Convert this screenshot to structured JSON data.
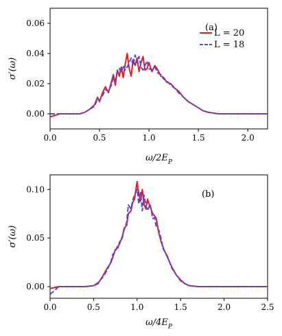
{
  "chart_data": [
    {
      "type": "line",
      "panel_label": "(a)",
      "xlabel": "ω/2E_P",
      "ylabel": "σ′(ω)",
      "xlim": [
        0,
        2.2
      ],
      "ylim": [
        -0.01,
        0.07
      ],
      "xticks": [
        "0.0",
        "0.5",
        "1.0",
        "1.5",
        "2.0"
      ],
      "yticks": [
        "0.00",
        "0.02",
        "0.04",
        "0.06"
      ],
      "legend": {
        "placement": "top-right",
        "entries": [
          "L = 20",
          "L = 18"
        ]
      },
      "grid": false,
      "series": [
        {
          "name": "L = 20",
          "color": "#e31a1c",
          "style": "solid",
          "x": [
            0.0,
            0.1,
            0.2,
            0.3,
            0.35,
            0.4,
            0.45,
            0.48,
            0.5,
            0.53,
            0.56,
            0.59,
            0.62,
            0.64,
            0.66,
            0.68,
            0.7,
            0.72,
            0.74,
            0.76,
            0.78,
            0.8,
            0.82,
            0.84,
            0.86,
            0.88,
            0.9,
            0.92,
            0.94,
            0.96,
            0.98,
            1.0,
            1.03,
            1.06,
            1.09,
            1.12,
            1.15,
            1.18,
            1.22,
            1.26,
            1.3,
            1.35,
            1.4,
            1.45,
            1.5,
            1.55,
            1.6,
            1.7,
            1.8,
            1.9,
            2.0,
            2.1,
            2.2
          ],
          "y": [
            -0.002,
            0.0,
            0.0,
            0.0,
            0.001,
            0.003,
            0.006,
            0.011,
            0.008,
            0.014,
            0.018,
            0.014,
            0.021,
            0.026,
            0.019,
            0.029,
            0.025,
            0.031,
            0.024,
            0.033,
            0.04,
            0.03,
            0.025,
            0.036,
            0.032,
            0.037,
            0.028,
            0.034,
            0.038,
            0.029,
            0.03,
            0.034,
            0.028,
            0.032,
            0.029,
            0.025,
            0.024,
            0.021,
            0.02,
            0.017,
            0.015,
            0.011,
            0.008,
            0.006,
            0.004,
            0.002,
            0.001,
            0.0,
            0.0,
            0.0,
            0.0,
            0.0,
            0.0
          ]
        },
        {
          "name": "L = 18",
          "color": "#4a4ae8",
          "style": "dashed",
          "x": [
            0.0,
            0.1,
            0.2,
            0.3,
            0.35,
            0.4,
            0.45,
            0.48,
            0.5,
            0.53,
            0.56,
            0.59,
            0.62,
            0.64,
            0.66,
            0.68,
            0.7,
            0.72,
            0.74,
            0.76,
            0.78,
            0.8,
            0.82,
            0.84,
            0.86,
            0.88,
            0.9,
            0.92,
            0.94,
            0.96,
            0.98,
            1.0,
            1.03,
            1.06,
            1.09,
            1.12,
            1.15,
            1.18,
            1.22,
            1.26,
            1.3,
            1.35,
            1.4,
            1.45,
            1.5,
            1.55,
            1.6,
            1.7,
            1.8,
            1.9,
            2.0,
            2.1,
            2.2
          ],
          "y": [
            0.0,
            0.0,
            0.0,
            0.0,
            0.001,
            0.003,
            0.005,
            0.01,
            0.009,
            0.012,
            0.016,
            0.015,
            0.019,
            0.024,
            0.022,
            0.028,
            0.03,
            0.027,
            0.032,
            0.029,
            0.031,
            0.034,
            0.037,
            0.032,
            0.039,
            0.034,
            0.038,
            0.031,
            0.029,
            0.032,
            0.035,
            0.03,
            0.029,
            0.031,
            0.027,
            0.026,
            0.023,
            0.022,
            0.019,
            0.017,
            0.014,
            0.011,
            0.008,
            0.006,
            0.004,
            0.002,
            0.001,
            0.0,
            0.0,
            0.0,
            0.0,
            0.0,
            0.0
          ]
        }
      ]
    },
    {
      "type": "line",
      "panel_label": "(b)",
      "xlabel": "ω/4E_P",
      "ylabel": "σ′(ω)",
      "xlim": [
        0,
        2.5
      ],
      "ylim": [
        -0.012,
        0.115
      ],
      "xticks": [
        "0.0",
        "0.5",
        "1.0",
        "1.5",
        "2.0",
        "2.5"
      ],
      "yticks": [
        "0.00",
        "0.05",
        "0.10"
      ],
      "grid": false,
      "series": [
        {
          "name": "L = 20",
          "color": "#e31a1c",
          "style": "solid",
          "x": [
            0.0,
            0.1,
            0.2,
            0.3,
            0.4,
            0.5,
            0.55,
            0.6,
            0.65,
            0.7,
            0.72,
            0.75,
            0.78,
            0.8,
            0.83,
            0.85,
            0.88,
            0.9,
            0.93,
            0.95,
            0.97,
            1.0,
            1.02,
            1.04,
            1.06,
            1.08,
            1.1,
            1.12,
            1.15,
            1.18,
            1.2,
            1.22,
            1.25,
            1.28,
            1.3,
            1.35,
            1.4,
            1.45,
            1.5,
            1.55,
            1.6,
            1.7,
            1.8,
            2.0,
            2.2,
            2.5
          ],
          "y": [
            -0.002,
            0.0,
            0.0,
            0.0,
            0.0,
            0.001,
            0.003,
            0.01,
            0.018,
            0.025,
            0.03,
            0.038,
            0.04,
            0.046,
            0.05,
            0.06,
            0.063,
            0.075,
            0.078,
            0.087,
            0.09,
            0.108,
            0.095,
            0.088,
            0.1,
            0.085,
            0.08,
            0.09,
            0.082,
            0.075,
            0.073,
            0.07,
            0.055,
            0.045,
            0.04,
            0.03,
            0.02,
            0.012,
            0.007,
            0.003,
            0.001,
            0.0,
            0.0,
            0.0,
            0.0,
            0.0
          ]
        },
        {
          "name": "L = 18",
          "color": "#4a4ae8",
          "style": "dashed",
          "x": [
            0.0,
            0.1,
            0.2,
            0.3,
            0.4,
            0.5,
            0.55,
            0.6,
            0.65,
            0.7,
            0.72,
            0.75,
            0.78,
            0.8,
            0.83,
            0.85,
            0.88,
            0.9,
            0.93,
            0.95,
            0.97,
            1.0,
            1.02,
            1.04,
            1.06,
            1.08,
            1.1,
            1.12,
            1.15,
            1.18,
            1.2,
            1.22,
            1.25,
            1.28,
            1.3,
            1.35,
            1.4,
            1.45,
            1.5,
            1.55,
            1.6,
            1.7,
            1.8,
            2.0,
            2.2,
            2.5
          ],
          "y": [
            -0.008,
            0.0,
            0.0,
            0.0,
            0.0,
            0.001,
            0.004,
            0.009,
            0.016,
            0.026,
            0.033,
            0.036,
            0.043,
            0.044,
            0.052,
            0.058,
            0.066,
            0.084,
            0.08,
            0.089,
            0.094,
            0.1,
            0.085,
            0.097,
            0.078,
            0.094,
            0.084,
            0.078,
            0.085,
            0.07,
            0.071,
            0.062,
            0.058,
            0.048,
            0.039,
            0.031,
            0.019,
            0.012,
            0.006,
            0.003,
            0.001,
            0.0,
            0.0,
            0.0,
            0.0,
            0.0
          ]
        }
      ]
    }
  ]
}
